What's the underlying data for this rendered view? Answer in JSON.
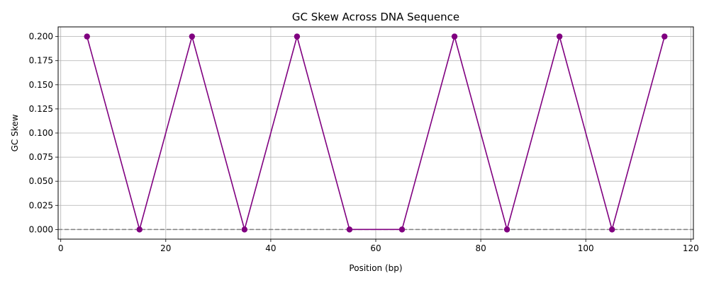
{
  "chart_data": {
    "type": "line",
    "title": "GC Skew Across DNA Sequence",
    "xlabel": "Position (bp)",
    "ylabel": "GC Skew",
    "x": [
      5,
      15,
      25,
      35,
      45,
      55,
      65,
      75,
      85,
      95,
      105,
      115
    ],
    "series": [
      {
        "values": [
          0.2,
          0.0,
          0.2,
          0.0,
          0.2,
          0.0,
          0.0,
          0.2,
          0.0,
          0.2,
          0.0,
          0.2
        ]
      }
    ],
    "xlim": [
      -0.5,
      120.5
    ],
    "ylim": [
      -0.01,
      0.21
    ],
    "xticks": [
      0,
      20,
      40,
      60,
      80,
      100,
      120
    ],
    "yticks": [
      0.0,
      0.025,
      0.05,
      0.075,
      0.1,
      0.125,
      0.15,
      0.175,
      0.2
    ],
    "ytick_labels": [
      "0.000",
      "0.025",
      "0.050",
      "0.075",
      "0.100",
      "0.125",
      "0.150",
      "0.175",
      "0.200"
    ],
    "reference_line": {
      "y": 0.0,
      "style": "dashed",
      "color": "#808080"
    },
    "grid": true,
    "legend": "none",
    "colors": {
      "series": "#800080",
      "grid": "#b0b0b0",
      "axis": "#000000"
    }
  }
}
